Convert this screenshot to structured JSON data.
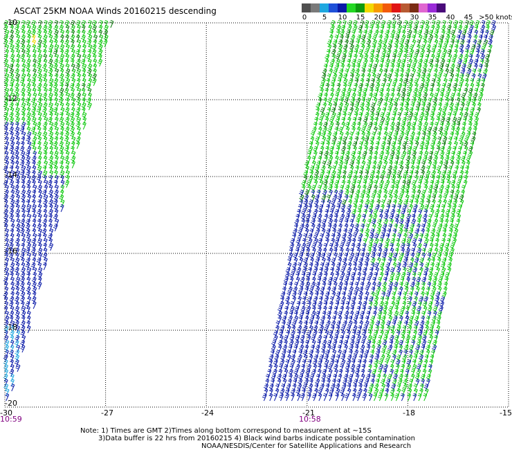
{
  "title": "ASCAT 25KM NOAA Winds 20160215 descending",
  "legend": {
    "colors": [
      "#505050",
      "#7a7a7a",
      "#1fa8e0",
      "#1e50d8",
      "#0a1aa8",
      "#23d823",
      "#0e9a0e",
      "#f2d800",
      "#f79a00",
      "#f25a0a",
      "#e01414",
      "#b85a32",
      "#7a2c14",
      "#e066d0",
      "#9a2ad8",
      "#4a0a7a"
    ],
    "ticks": [
      "0",
      "5",
      "10",
      "15",
      "20",
      "25",
      "30",
      "35",
      "40",
      "45",
      ">50 knots"
    ]
  },
  "map": {
    "lat_labels": [
      "-10",
      "-12",
      "-14",
      "-16",
      "-18",
      "-20"
    ],
    "lon_labels": [
      "-30",
      "-27",
      "-24",
      "-21",
      "-18",
      "-15"
    ],
    "lat_range": [
      -20,
      -10
    ],
    "lon_range": [
      -30,
      -15
    ],
    "grid": "dotted",
    "swath_times": [
      "10:59",
      "10:58"
    ],
    "barb_colors": {
      "green": "#0cc80c",
      "dark_green": "#0a7a0a",
      "blue": "#0a1aa8",
      "light_blue": "#1fa8e0",
      "yellow": "#f2d800"
    }
  },
  "notes": {
    "line1": "Note: 1) Times are GMT 2)Times along bottom correspond to measurement at ~15S",
    "line2": "3)Data buffer is 22 hrs from 20160215 4) Black wind barbs indicate possible contamination",
    "credit": "NOAA/NESDIS/Center for Satellite Applications and Research"
  }
}
